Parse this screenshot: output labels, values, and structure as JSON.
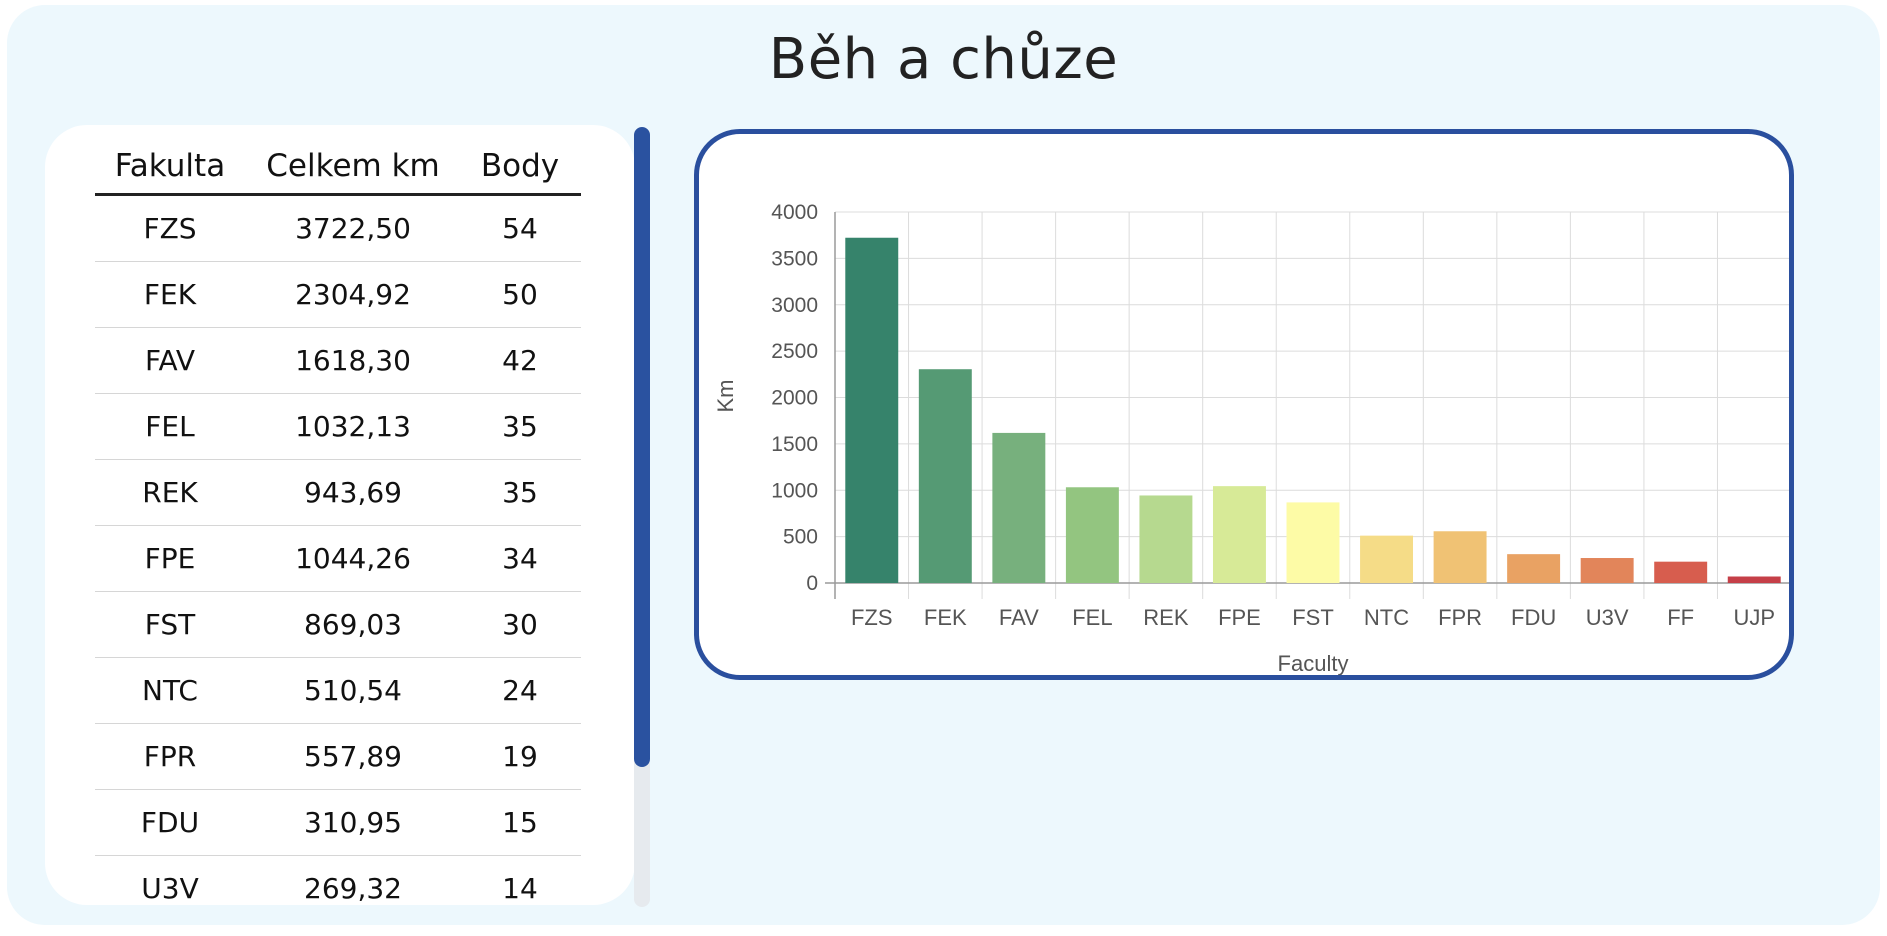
{
  "page": {
    "title": "Běh a chůze"
  },
  "table": {
    "headers": {
      "faculty": "Fakulta",
      "total_km": "Celkem km",
      "points": "Body"
    },
    "rows": [
      {
        "faculty": "FZS",
        "km": "3722,50",
        "points": "54"
      },
      {
        "faculty": "FEK",
        "km": "2304,92",
        "points": "50"
      },
      {
        "faculty": "FAV",
        "km": "1618,30",
        "points": "42"
      },
      {
        "faculty": "FEL",
        "km": "1032,13",
        "points": "35"
      },
      {
        "faculty": "REK",
        "km": "943,69",
        "points": "35"
      },
      {
        "faculty": "FPE",
        "km": "1044,26",
        "points": "34"
      },
      {
        "faculty": "FST",
        "km": "869,03",
        "points": "30"
      },
      {
        "faculty": "NTC",
        "km": "510,54",
        "points": "24"
      },
      {
        "faculty": "FPR",
        "km": "557,89",
        "points": "19"
      },
      {
        "faculty": "FDU",
        "km": "310,95",
        "points": "15"
      },
      {
        "faculty": "U3V",
        "km": "269,32",
        "points": "14"
      }
    ]
  },
  "chart_data": {
    "type": "bar",
    "categories": [
      "FZS",
      "FEK",
      "FAV",
      "FEL",
      "REK",
      "FPE",
      "FST",
      "NTC",
      "FPR",
      "FDU",
      "U3V",
      "FF",
      "UJP"
    ],
    "values": [
      3722.5,
      2304.92,
      1618.3,
      1032.13,
      943.69,
      1044.26,
      869.03,
      510.54,
      557.89,
      310.95,
      269.32,
      230,
      70
    ],
    "colors": [
      "#36836b",
      "#559a74",
      "#77b07d",
      "#93c580",
      "#b6d98f",
      "#d7ea97",
      "#fdfba6",
      "#f5dc87",
      "#f0c274",
      "#e9a263",
      "#e2855a",
      "#d75d4e",
      "#c53f48"
    ],
    "xlabel": "Faculty",
    "ylabel": "Km",
    "ylim": [
      0,
      4000
    ],
    "yticks": [
      0,
      500,
      1000,
      1500,
      2000,
      2500,
      3000,
      3500,
      4000
    ],
    "grid": true
  }
}
